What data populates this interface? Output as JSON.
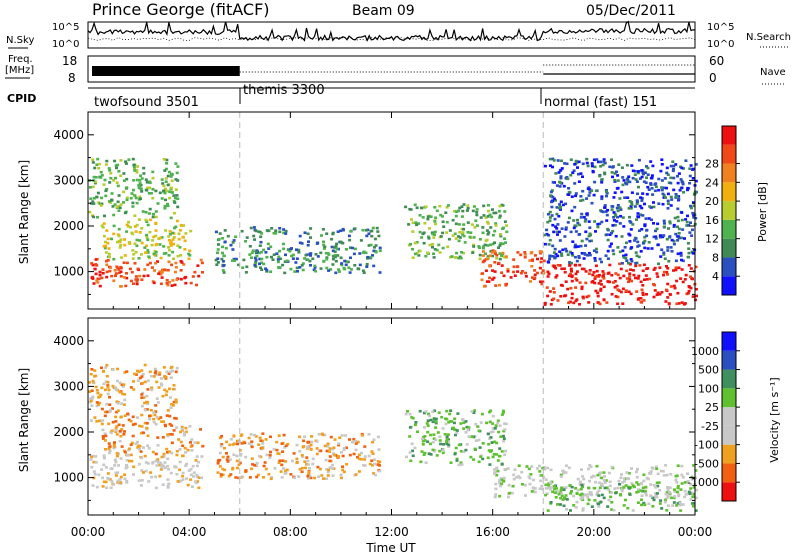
{
  "header": {
    "station": "Prince George (fitACF)",
    "beam": "Beam 09",
    "date": "05/Dec/2011"
  },
  "top_panels": {
    "nsky_label": "N.Sky",
    "nsky_ticks": [
      "10^5",
      "10^0"
    ],
    "nsearch_label": "N.Search",
    "nsearch_ticks": [
      "10^5",
      "10^0"
    ],
    "freq_label_line1": "Freq.",
    "freq_label_line2": "[MHz]",
    "freq_ticks": [
      "18",
      "8"
    ],
    "nave_label": "Nave",
    "nave_ticks": [
      "60",
      "0"
    ],
    "cpid_label": "CPID",
    "cpid_segments": [
      {
        "label": "twofsound 3501",
        "start_hour": 0
      },
      {
        "label": "themis 3300",
        "start_hour": 6
      },
      {
        "label": "normal (fast) 151",
        "start_hour": 18
      }
    ]
  },
  "chart_data": [
    {
      "type": "heatmap",
      "parameter": "Power",
      "ylabel": "Slant Range [km]",
      "yticks": [
        1000,
        2000,
        3000,
        4000
      ],
      "ylim": [
        180,
        4500
      ],
      "xlim_hours": [
        0,
        24
      ],
      "colorbar_label": "Power [dB]",
      "colorbar_ticks": [
        "4",
        "8",
        "12",
        "16",
        "20",
        "24",
        "28"
      ],
      "colorbar_colors": [
        "#1010ff",
        "#2a4fbf",
        "#3f8a55",
        "#4fb24f",
        "#b8cc30",
        "#f0b010",
        "#f08020",
        "#f04818",
        "#ee1010"
      ],
      "echo_regions": [
        {
          "t0": 0.0,
          "t1": 4.5,
          "r0": 700,
          "r1": 1300,
          "level": 7
        },
        {
          "t0": 0.5,
          "t1": 4.0,
          "r0": 1300,
          "r1": 2200,
          "level": 4
        },
        {
          "t0": 0.0,
          "t1": 3.5,
          "r0": 2200,
          "r1": 3500,
          "level": 3
        },
        {
          "t0": 5.0,
          "t1": 11.5,
          "r0": 1000,
          "r1": 2000,
          "level": 2
        },
        {
          "t0": 12.5,
          "t1": 16.5,
          "r0": 1300,
          "r1": 2500,
          "level": 3
        },
        {
          "t0": 15.5,
          "t1": 18.0,
          "r0": 700,
          "r1": 1500,
          "level": 7
        },
        {
          "t0": 18.0,
          "t1": 24.0,
          "r0": 300,
          "r1": 1200,
          "level": 8
        },
        {
          "t0": 18.0,
          "t1": 24.0,
          "r0": 1200,
          "r1": 3500,
          "level": 1
        }
      ]
    },
    {
      "type": "heatmap",
      "parameter": "Velocity",
      "ylabel": "Slant Range [km]",
      "yticks": [
        1000,
        2000,
        3000,
        4000
      ],
      "ylim": [
        180,
        4500
      ],
      "xlim_hours": [
        0,
        24
      ],
      "colorbar_label": "Velocity [m s⁻¹]",
      "colorbar_ticks": [
        "-1000",
        "-500",
        "-100",
        "-25",
        "25",
        "100",
        "500",
        "1000"
      ],
      "colorbar_colors": [
        "#ee1010",
        "#f06010",
        "#f0a020",
        "#c8c8c8",
        "#c8c8c8",
        "#5fc030",
        "#3f8f5f",
        "#2a4fbf",
        "#1010ff"
      ],
      "echo_regions": [
        {
          "t0": 0.0,
          "t1": 4.5,
          "r0": 800,
          "r1": 1500,
          "level": 3
        },
        {
          "t0": 0.5,
          "t1": 4.5,
          "r0": 1500,
          "r1": 2200,
          "level": 2
        },
        {
          "t0": 0.0,
          "t1": 3.5,
          "r0": 2200,
          "r1": 3500,
          "level": 2
        },
        {
          "t0": 5.0,
          "t1": 11.5,
          "r0": 1000,
          "r1": 2000,
          "level": 2
        },
        {
          "t0": 12.5,
          "t1": 16.5,
          "r0": 1300,
          "r1": 2500,
          "level": 5
        },
        {
          "t0": 16.0,
          "t1": 24.0,
          "r0": 600,
          "r1": 1300,
          "level": 4
        },
        {
          "t0": 18.0,
          "t1": 24.0,
          "r0": 300,
          "r1": 900,
          "level": 5
        }
      ]
    }
  ],
  "time_axis": {
    "xlabel": "Time UT",
    "ticks": [
      "00:00",
      "04:00",
      "08:00",
      "12:00",
      "16:00",
      "20:00",
      "00:00"
    ]
  }
}
